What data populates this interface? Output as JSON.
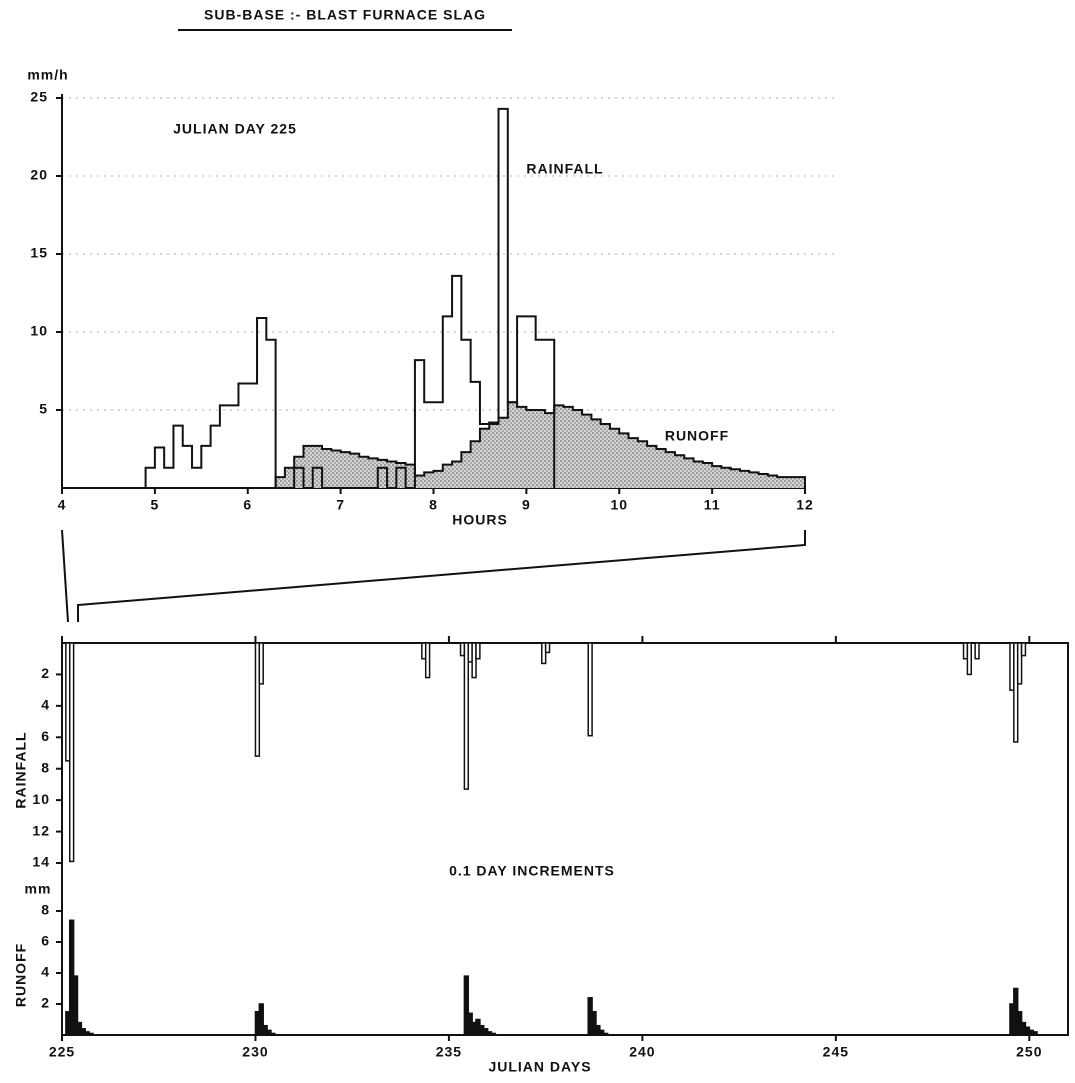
{
  "chart_data": [
    {
      "type": "step",
      "title": "SUB-BASE :- BLAST FURNACE SLAG",
      "y_unit": "mm/h",
      "annotation": "JULIAN DAY 225",
      "x_label": "HOURS",
      "x": [
        4.9,
        5.0,
        5.1,
        5.2,
        5.3,
        5.4,
        5.5,
        5.6,
        5.7,
        5.8,
        5.9,
        6.0,
        6.1,
        6.2,
        6.3,
        6.4,
        6.5,
        6.6,
        6.7,
        6.8,
        6.9,
        7.0,
        7.1,
        7.2,
        7.3,
        7.4,
        7.5,
        7.6,
        7.7,
        7.8,
        7.9,
        8.0,
        8.1,
        8.2,
        8.3,
        8.4,
        8.5,
        8.6,
        8.7,
        8.8,
        8.9,
        9.0,
        9.1,
        9.2,
        9.3,
        9.4,
        9.5,
        9.6,
        9.7,
        9.8,
        9.9,
        10.0,
        10.1,
        10.2,
        10.3,
        10.4,
        10.5,
        10.6,
        10.7,
        10.8,
        10.9,
        11.0,
        11.1,
        11.2,
        11.3,
        11.4,
        11.5,
        11.6,
        11.7,
        11.8,
        11.9
      ],
      "series": [
        {
          "name": "RUNOFF",
          "color": "#111111",
          "fill": "#bdbdbd",
          "values": [
            null,
            null,
            null,
            null,
            null,
            null,
            null,
            null,
            null,
            null,
            null,
            null,
            null,
            null,
            0.7,
            1.3,
            2.0,
            2.7,
            2.7,
            2.5,
            2.4,
            2.3,
            2.2,
            2.0,
            1.9,
            1.8,
            1.7,
            1.6,
            1.5,
            0.8,
            1.0,
            1.1,
            1.5,
            1.7,
            2.3,
            3.0,
            3.8,
            4.2,
            4.5,
            5.5,
            5.2,
            5.0,
            5.0,
            4.8,
            5.3,
            5.2,
            5.0,
            4.7,
            4.4,
            4.1,
            3.8,
            3.5,
            3.2,
            3.0,
            2.7,
            2.5,
            2.3,
            2.1,
            1.9,
            1.7,
            1.6,
            1.4,
            1.3,
            1.2,
            1.1,
            1.0,
            0.9,
            0.8,
            0.7,
            0.7,
            0.7
          ]
        },
        {
          "name": "RAINFALL",
          "color": "#111111",
          "values": [
            1.3,
            2.6,
            1.3,
            4,
            2.7,
            1.3,
            2.7,
            4,
            5.3,
            5.3,
            6.7,
            6.7,
            10.9,
            9.5,
            0,
            0,
            1.3,
            0,
            1.3,
            0,
            0,
            0,
            0,
            0,
            0,
            1.3,
            0,
            1.3,
            0,
            8.2,
            5.5,
            5.5,
            11,
            13.6,
            9.5,
            6.8,
            4.1,
            4.1,
            24.3,
            5.5,
            11,
            11,
            9.5,
            9.5,
            null,
            null,
            null,
            null,
            null,
            null,
            null,
            null,
            null,
            null,
            null,
            null,
            null,
            null,
            null,
            null,
            null,
            null,
            null,
            null,
            null,
            null,
            null,
            null,
            null,
            null,
            null
          ]
        }
      ],
      "xlim": [
        4,
        12
      ],
      "xticks": [
        4,
        5,
        6,
        7,
        8,
        9,
        10,
        11,
        12
      ],
      "ylim": [
        0,
        25
      ],
      "yticks": [
        5,
        10,
        15,
        20,
        25
      ],
      "grid": true
    },
    {
      "type": "bar",
      "inverted": true,
      "y_label": "RAINFALL",
      "x": [
        225.1,
        225.2,
        230.0,
        230.1,
        234.3,
        234.4,
        235.3,
        235.4,
        235.5,
        235.6,
        235.7,
        237.4,
        237.5,
        238.6,
        248.3,
        248.4,
        248.6,
        249.5,
        249.6,
        249.7,
        249.8
      ],
      "values": [
        7.5,
        13.9,
        7.2,
        2.6,
        1.0,
        2.2,
        0.8,
        9.3,
        1.2,
        2.2,
        1.0,
        1.3,
        0.6,
        5.9,
        1.0,
        2.0,
        1.0,
        3.0,
        6.3,
        2.6,
        0.8
      ],
      "color": "#ffffff",
      "xlim": [
        225,
        251
      ],
      "ylim": [
        0,
        14
      ],
      "yticks": [
        2,
        4,
        6,
        8,
        10,
        12,
        14
      ]
    },
    {
      "type": "bar",
      "y_label": "RUNOFF",
      "y_unit": "mm",
      "annotation": "0.1 DAY INCREMENTS",
      "x_label": "JULIAN DAYS",
      "x": [
        225.1,
        225.2,
        225.3,
        225.4,
        225.5,
        225.6,
        225.7,
        230.0,
        230.1,
        230.2,
        230.3,
        230.4,
        235.4,
        235.5,
        235.6,
        235.7,
        235.8,
        235.9,
        236.0,
        236.1,
        238.6,
        238.7,
        238.8,
        238.9,
        239.0,
        249.5,
        249.6,
        249.7,
        249.8,
        249.9,
        250.0,
        250.1
      ],
      "values": [
        1.5,
        7.4,
        3.8,
        0.8,
        0.4,
        0.2,
        0.1,
        1.5,
        2.0,
        0.6,
        0.3,
        0.1,
        3.8,
        1.4,
        0.8,
        1.0,
        0.6,
        0.4,
        0.2,
        0.1,
        2.4,
        1.5,
        0.6,
        0.3,
        0.1,
        2.0,
        3.0,
        1.5,
        0.8,
        0.5,
        0.3,
        0.2
      ],
      "color": "#111111",
      "xlim": [
        225,
        251
      ],
      "xticks": [
        225,
        230,
        235,
        240,
        245,
        250
      ],
      "ylim": [
        0,
        8
      ],
      "yticks": [
        2,
        4,
        6,
        8
      ]
    }
  ]
}
